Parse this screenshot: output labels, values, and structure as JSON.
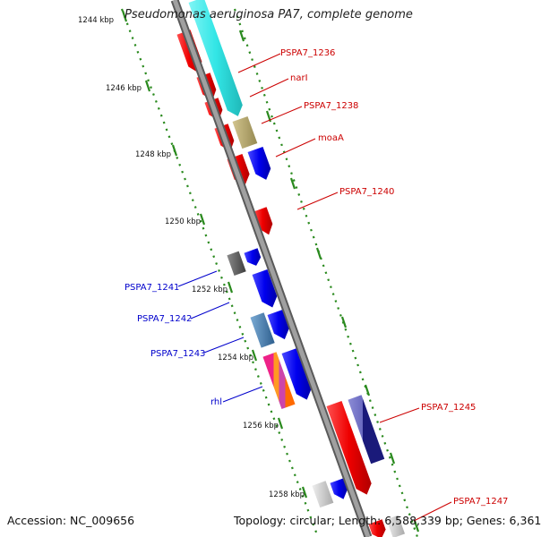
{
  "title": "Pseudomonas aeruginosa PA7, complete genome",
  "footer": {
    "accession": "Accession: NC_009656",
    "summary": "Topology: circular; Length: 6,588,339 bp; Genes: 6,361"
  },
  "axis_labels": [
    "1244 kbp",
    "1246 kbp",
    "1248 kbp",
    "1250 kbp",
    "1252 kbp",
    "1254 kbp",
    "1256 kbp",
    "1258 kbp"
  ],
  "gene_labels_right": [
    "PSPA7_1236",
    "narI",
    "PSPA7_1238",
    "moaA",
    "PSPA7_1240",
    "PSPA7_1245",
    "PSPA7_1247"
  ],
  "gene_labels_left": [
    "PSPA7_1241",
    "PSPA7_1242",
    "PSPA7_1243",
    "rhl"
  ],
  "colors": {
    "forward_label": "#cc0000",
    "reverse_label": "#0000cc",
    "backbone": "#8a8a8a",
    "dots": "#2a8a1e",
    "red_gene": "#ee0000",
    "blue_gene": "#0000ee",
    "cyan_band": "#33e6e6",
    "khaki_gene": "#b8a870",
    "grey_gene": "#666666",
    "steel_gene": "#4a7fb0",
    "navy_gene": "#2a2a90",
    "light_grey_gene": "#cccccc"
  }
}
